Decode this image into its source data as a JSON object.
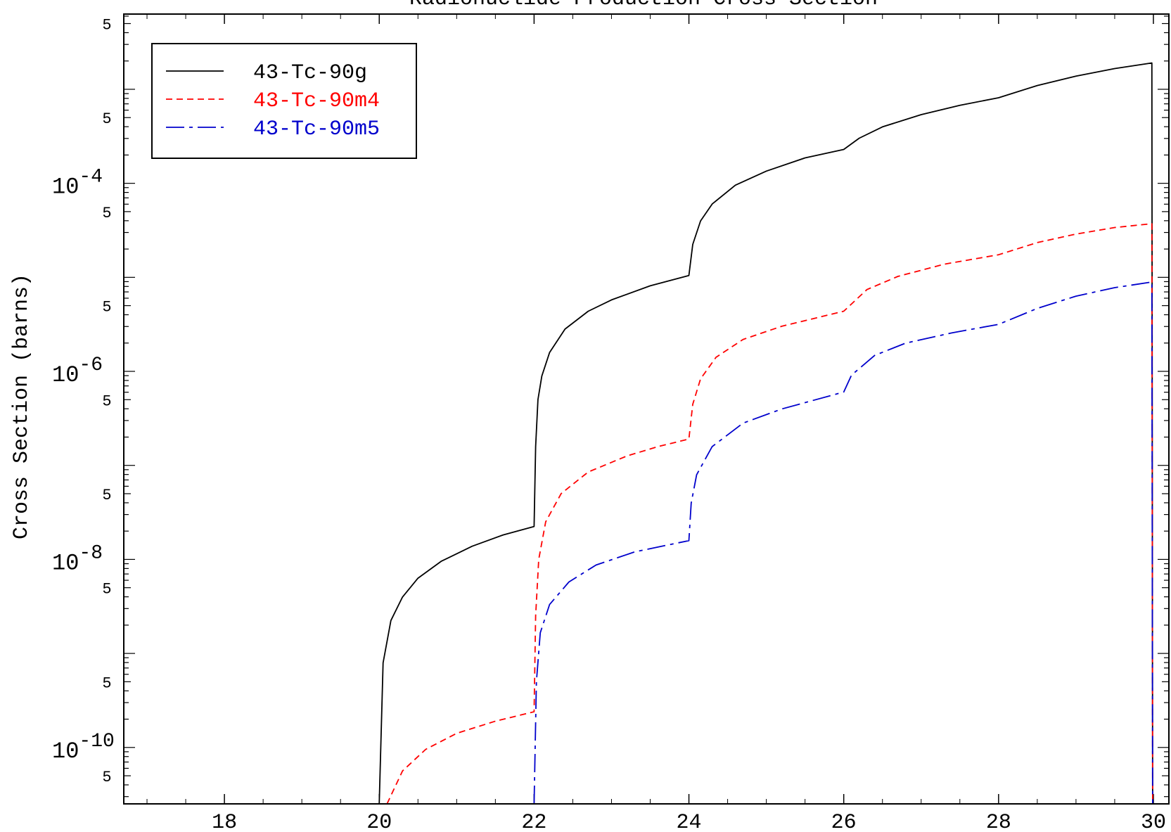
{
  "chart_data": {
    "type": "line",
    "title": "Radionuclide Production Cross Section",
    "xlabel": "",
    "ylabel": "Cross Section (barns)",
    "xlim": [
      16.7,
      30.2
    ],
    "ylim_log10": [
      -10.6,
      -2.2
    ],
    "yscale": "log",
    "x_ticks": [
      18,
      20,
      22,
      24,
      26,
      28,
      30
    ],
    "x_tick_labels": [
      "18",
      "20",
      "22",
      "24",
      "26",
      "28",
      "30"
    ],
    "y_decade_ticks": [
      {
        "exp": -4,
        "base": "10",
        "power": "-4"
      },
      {
        "exp": -6,
        "base": "10",
        "power": "-6"
      },
      {
        "exp": -8,
        "base": "10",
        "power": "-8"
      },
      {
        "exp": -10,
        "base": "10",
        "power": "-10"
      }
    ],
    "y_five_label": "5",
    "legend_position": "top-left",
    "series": [
      {
        "name": "43-Tc-90g",
        "color": "#000000",
        "dash": "solid",
        "points": [
          [
            20.0,
            -10.6
          ],
          [
            20.05,
            -9.1
          ],
          [
            20.15,
            -8.65
          ],
          [
            20.3,
            -8.4
          ],
          [
            20.5,
            -8.2
          ],
          [
            20.8,
            -8.02
          ],
          [
            21.2,
            -7.86
          ],
          [
            21.6,
            -7.74
          ],
          [
            22.0,
            -7.65
          ],
          [
            22.02,
            -6.8
          ],
          [
            22.05,
            -6.3
          ],
          [
            22.1,
            -6.05
          ],
          [
            22.2,
            -5.8
          ],
          [
            22.4,
            -5.55
          ],
          [
            22.7,
            -5.36
          ],
          [
            23.0,
            -5.24
          ],
          [
            23.5,
            -5.09
          ],
          [
            24.0,
            -4.98
          ],
          [
            24.05,
            -4.65
          ],
          [
            24.15,
            -4.4
          ],
          [
            24.3,
            -4.22
          ],
          [
            24.6,
            -4.02
          ],
          [
            25.0,
            -3.87
          ],
          [
            25.5,
            -3.73
          ],
          [
            26.0,
            -3.64
          ],
          [
            26.2,
            -3.52
          ],
          [
            26.5,
            -3.4
          ],
          [
            27.0,
            -3.27
          ],
          [
            27.5,
            -3.17
          ],
          [
            28.0,
            -3.09
          ],
          [
            28.5,
            -2.96
          ],
          [
            29.0,
            -2.86
          ],
          [
            29.5,
            -2.78
          ],
          [
            29.98,
            -2.72
          ],
          [
            29.99,
            -10.6
          ]
        ]
      },
      {
        "name": "43-Tc-90m4",
        "color": "#ff0000",
        "dash": "dash",
        "points": [
          [
            20.1,
            -10.6
          ],
          [
            20.3,
            -10.25
          ],
          [
            20.6,
            -10.02
          ],
          [
            21.0,
            -9.85
          ],
          [
            21.5,
            -9.72
          ],
          [
            22.0,
            -9.62
          ],
          [
            22.02,
            -8.6
          ],
          [
            22.06,
            -8.0
          ],
          [
            22.15,
            -7.6
          ],
          [
            22.35,
            -7.3
          ],
          [
            22.7,
            -7.07
          ],
          [
            23.2,
            -6.9
          ],
          [
            23.6,
            -6.8
          ],
          [
            24.0,
            -6.72
          ],
          [
            24.05,
            -6.35
          ],
          [
            24.15,
            -6.08
          ],
          [
            24.35,
            -5.85
          ],
          [
            24.7,
            -5.66
          ],
          [
            25.2,
            -5.52
          ],
          [
            26.0,
            -5.36
          ],
          [
            26.3,
            -5.13
          ],
          [
            26.7,
            -4.99
          ],
          [
            27.3,
            -4.86
          ],
          [
            28.0,
            -4.76
          ],
          [
            28.5,
            -4.63
          ],
          [
            29.0,
            -4.54
          ],
          [
            29.5,
            -4.47
          ],
          [
            29.98,
            -4.43
          ],
          [
            29.99,
            -10.6
          ]
        ]
      },
      {
        "name": "43-Tc-90m5",
        "color": "#0000cc",
        "dash": "dashdot",
        "points": [
          [
            22.0,
            -10.6
          ],
          [
            22.03,
            -9.3
          ],
          [
            22.08,
            -8.78
          ],
          [
            22.2,
            -8.48
          ],
          [
            22.45,
            -8.24
          ],
          [
            22.8,
            -8.06
          ],
          [
            23.3,
            -7.92
          ],
          [
            24.0,
            -7.8
          ],
          [
            24.03,
            -7.4
          ],
          [
            24.1,
            -7.1
          ],
          [
            24.3,
            -6.8
          ],
          [
            24.7,
            -6.55
          ],
          [
            25.2,
            -6.4
          ],
          [
            26.0,
            -6.22
          ],
          [
            26.1,
            -6.04
          ],
          [
            26.4,
            -5.83
          ],
          [
            26.8,
            -5.7
          ],
          [
            27.4,
            -5.59
          ],
          [
            28.0,
            -5.5
          ],
          [
            28.5,
            -5.33
          ],
          [
            29.0,
            -5.2
          ],
          [
            29.5,
            -5.11
          ],
          [
            29.98,
            -5.05
          ],
          [
            29.99,
            -10.6
          ]
        ]
      }
    ]
  }
}
